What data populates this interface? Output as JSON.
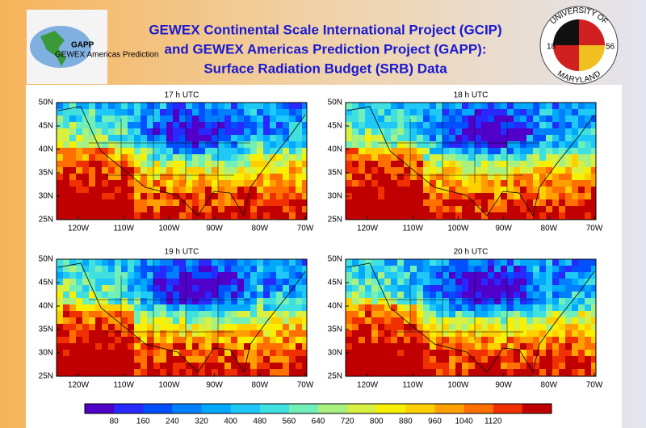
{
  "header": {
    "title_lines": [
      "GEWEX Continental Scale International Project (GCIP)",
      "and GEWEX Americas Prediction Project (GAPP):",
      "Surface Radiation Budget (SRB) Data"
    ],
    "left_logo": {
      "name": "GAPP",
      "subtitle": "GEWEX Americas Prediction"
    },
    "right_logo": {
      "top": "UNIVERSITY OF",
      "bottom": "MARYLAND",
      "year_left": "18",
      "year_right": "56"
    }
  },
  "panels": [
    {
      "title": "17 h UTC"
    },
    {
      "title": "18 h UTC"
    },
    {
      "title": "19 h UTC"
    },
    {
      "title": "20 h UTC"
    }
  ],
  "latitude_labels": [
    "50N",
    "45N",
    "40N",
    "35N",
    "30N",
    "25N"
  ],
  "longitude_labels": [
    "120W",
    "110W",
    "100W",
    "90W",
    "80W",
    "70W"
  ],
  "colorbar": {
    "labels": [
      80,
      160,
      240,
      320,
      400,
      480,
      560,
      640,
      720,
      800,
      880,
      960,
      1040,
      1120
    ]
  }
}
